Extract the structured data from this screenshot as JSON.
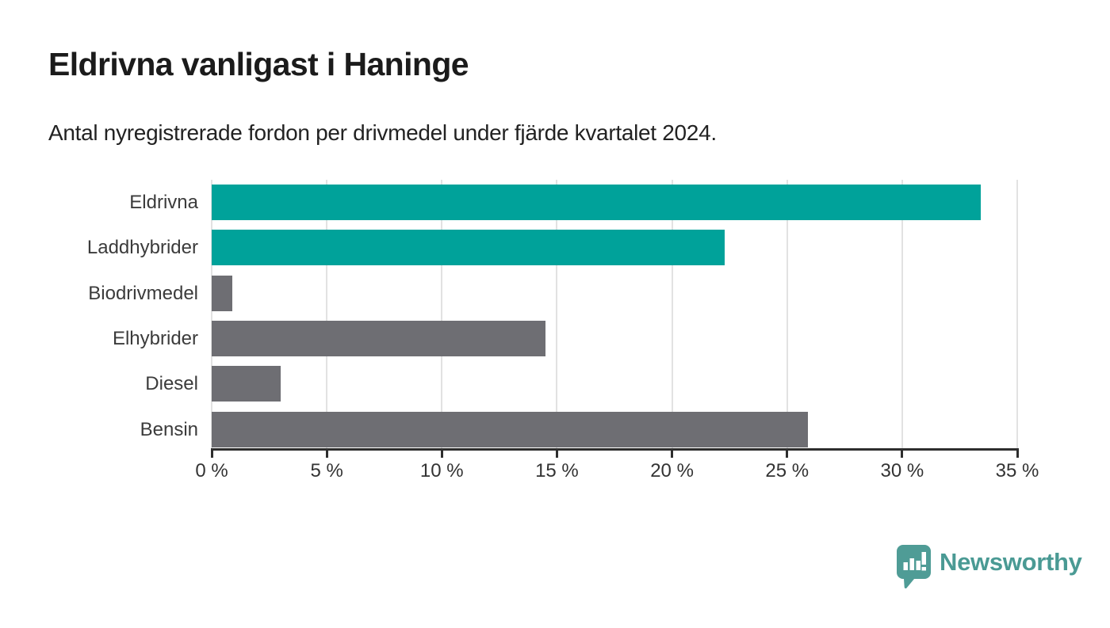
{
  "header": {
    "title": "Eldrivna vanligast i Haninge",
    "subtitle": "Antal nyregistrerade fordon per drivmedel under fjärde kvartalet 2024."
  },
  "logo": {
    "wordmark": "Newsworthy",
    "color": "#4a9a94",
    "icon": "newsworthy-barchart-speech-bubble"
  },
  "colors": {
    "accent_teal": "#00a29a",
    "neutral_gray": "#6e6e73",
    "gridline": "#e2e2e2",
    "axis": "#2e2e2e",
    "label_text": "#3b3b3b"
  },
  "chart_data": {
    "type": "bar",
    "orientation": "horizontal",
    "title": "Eldrivna vanligast i Haninge",
    "subtitle": "Antal nyregistrerade fordon per drivmedel under fjärde kvartalet 2024.",
    "categories": [
      "Eldrivna",
      "Laddhybrider",
      "Biodrivmedel",
      "Elhybrider",
      "Diesel",
      "Bensin"
    ],
    "values": [
      33.4,
      22.3,
      0.9,
      14.5,
      3.0,
      25.9
    ],
    "unit": "%",
    "bar_colors": [
      "#00a29a",
      "#00a29a",
      "#6e6e73",
      "#6e6e73",
      "#6e6e73",
      "#6e6e73"
    ],
    "xlim": [
      0,
      35
    ],
    "x_tick_values": [
      0,
      5,
      10,
      15,
      20,
      25,
      30,
      35
    ],
    "x_tick_labels": [
      "0 %",
      "5 %",
      "10 %",
      "15 %",
      "20 %",
      "25 %",
      "30 %",
      "35 %"
    ],
    "grid": true,
    "legend": false,
    "xlabel": "",
    "ylabel": ""
  }
}
